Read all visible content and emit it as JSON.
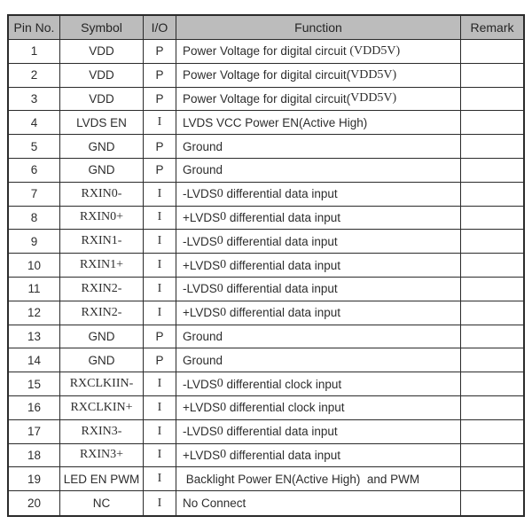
{
  "colors": {
    "page_background": "#ffffff",
    "header_background": "#bcbcbc",
    "border": "#2b2b2b",
    "text": "#2d2d2d"
  },
  "table": {
    "headers": [
      "Pin No.",
      "Symbol",
      "I/O",
      "Function",
      "Remark"
    ],
    "rows": [
      {
        "pin": "1",
        "symbol": "VDD",
        "symbol_font": "sans",
        "io": "P",
        "io_font": "sans",
        "func": [
          {
            "t": "Power Voltage for digital circuit ",
            "f": "sans"
          },
          {
            "t": "(VDD5V)",
            "f": "serif"
          }
        ],
        "remark": ""
      },
      {
        "pin": "2",
        "symbol": "VDD",
        "symbol_font": "sans",
        "io": "P",
        "io_font": "sans",
        "func": [
          {
            "t": "Power Voltage for digital circuit(",
            "f": "sans"
          },
          {
            "t": "VDD5V)",
            "f": "serif"
          }
        ],
        "remark": ""
      },
      {
        "pin": "3",
        "symbol": "VDD",
        "symbol_font": "sans",
        "io": "P",
        "io_font": "sans",
        "func": [
          {
            "t": "Power Voltage for digital circuit(",
            "f": "sans"
          },
          {
            "t": "VDD5V)",
            "f": "serif"
          }
        ],
        "remark": ""
      },
      {
        "pin": "4",
        "symbol": "LVDS EN",
        "symbol_font": "sans",
        "io": "I",
        "io_font": "serif",
        "func": [
          {
            "t": "LVDS VCC Power EN(Active High)",
            "f": "sans"
          }
        ],
        "remark": ""
      },
      {
        "pin": "5",
        "symbol": "GND",
        "symbol_font": "sans",
        "io": "P",
        "io_font": "sans",
        "func": [
          {
            "t": "Ground",
            "f": "sans"
          }
        ],
        "remark": ""
      },
      {
        "pin": "6",
        "symbol": "GND",
        "symbol_font": "sans",
        "io": "P",
        "io_font": "sans",
        "func": [
          {
            "t": "Ground",
            "f": "sans"
          }
        ],
        "remark": ""
      },
      {
        "pin": "7",
        "symbol": "RXIN0-",
        "symbol_font": "serif",
        "io": "I",
        "io_font": "serif",
        "func": [
          {
            "t": "-LVDS",
            "f": "sans"
          },
          {
            "t": "0",
            "f": "serif"
          },
          {
            "t": " differential data input",
            "f": "sans"
          }
        ],
        "remark": ""
      },
      {
        "pin": "8",
        "symbol": "RXIN0+",
        "symbol_font": "serif",
        "io": "I",
        "io_font": "serif",
        "func": [
          {
            "t": "+LVDS",
            "f": "sans"
          },
          {
            "t": "0",
            "f": "serif"
          },
          {
            "t": " differential data input",
            "f": "sans"
          }
        ],
        "remark": ""
      },
      {
        "pin": "9",
        "symbol": "RXIN1-",
        "symbol_font": "serif",
        "io": "I",
        "io_font": "serif",
        "func": [
          {
            "t": "-LVDS",
            "f": "sans"
          },
          {
            "t": "0",
            "f": "serif"
          },
          {
            "t": " differential data input",
            "f": "sans"
          }
        ],
        "remark": ""
      },
      {
        "pin": "10",
        "symbol": "RXIN1+",
        "symbol_font": "serif",
        "io": "I",
        "io_font": "serif",
        "func": [
          {
            "t": "+LVDS",
            "f": "sans"
          },
          {
            "t": "0",
            "f": "serif"
          },
          {
            "t": " differential data input",
            "f": "sans"
          }
        ],
        "remark": ""
      },
      {
        "pin": "11",
        "symbol": "RXIN2-",
        "symbol_font": "serif",
        "io": "I",
        "io_font": "serif",
        "func": [
          {
            "t": "-LVDS",
            "f": "sans"
          },
          {
            "t": "0",
            "f": "serif"
          },
          {
            "t": " differential data input",
            "f": "sans"
          }
        ],
        "remark": ""
      },
      {
        "pin": "12",
        "symbol": "RXIN2-",
        "symbol_font": "serif",
        "io": "I",
        "io_font": "serif",
        "func": [
          {
            "t": "+LVDS",
            "f": "sans"
          },
          {
            "t": "0",
            "f": "serif"
          },
          {
            "t": " differential data input",
            "f": "sans"
          }
        ],
        "remark": ""
      },
      {
        "pin": "13",
        "symbol": "GND",
        "symbol_font": "sans",
        "io": "P",
        "io_font": "sans",
        "func": [
          {
            "t": "Ground",
            "f": "sans"
          }
        ],
        "remark": ""
      },
      {
        "pin": "14",
        "symbol": "GND",
        "symbol_font": "sans",
        "io": "P",
        "io_font": "sans",
        "func": [
          {
            "t": "Ground",
            "f": "sans"
          }
        ],
        "remark": ""
      },
      {
        "pin": "15",
        "symbol": "RXCLKIIN-",
        "symbol_font": "serif",
        "io": "I",
        "io_font": "serif",
        "func": [
          {
            "t": "-LVDS",
            "f": "sans"
          },
          {
            "t": "0",
            "f": "serif"
          },
          {
            "t": " differential clock input",
            "f": "sans"
          }
        ],
        "remark": ""
      },
      {
        "pin": "16",
        "symbol": "RXCLKIN+",
        "symbol_font": "serif",
        "io": "I",
        "io_font": "serif",
        "func": [
          {
            "t": "+LVDS",
            "f": "sans"
          },
          {
            "t": "0",
            "f": "serif"
          },
          {
            "t": " differential clock input",
            "f": "sans"
          }
        ],
        "remark": ""
      },
      {
        "pin": "17",
        "symbol": "RXIN3-",
        "symbol_font": "serif",
        "io": "I",
        "io_font": "serif",
        "func": [
          {
            "t": "-LVDS",
            "f": "sans"
          },
          {
            "t": "0",
            "f": "serif"
          },
          {
            "t": " differential data input",
            "f": "sans"
          }
        ],
        "remark": ""
      },
      {
        "pin": "18",
        "symbol": "RXIN3+",
        "symbol_font": "serif",
        "io": "I",
        "io_font": "serif",
        "func": [
          {
            "t": "+LVDS",
            "f": "sans"
          },
          {
            "t": "0",
            "f": "serif"
          },
          {
            "t": " differential data input",
            "f": "sans"
          }
        ],
        "remark": ""
      },
      {
        "pin": "19",
        "symbol": "LED EN PWM",
        "symbol_font": "sans",
        "io": "I",
        "io_font": "serif",
        "func": [
          {
            "t": " Backlight Power EN(Active High)  and PWM",
            "f": "sans"
          }
        ],
        "remark": ""
      },
      {
        "pin": "20",
        "symbol": "NC",
        "symbol_font": "sans",
        "io": "I",
        "io_font": "serif",
        "func": [
          {
            "t": "No Connect",
            "f": "sans"
          }
        ],
        "remark": ""
      }
    ]
  }
}
